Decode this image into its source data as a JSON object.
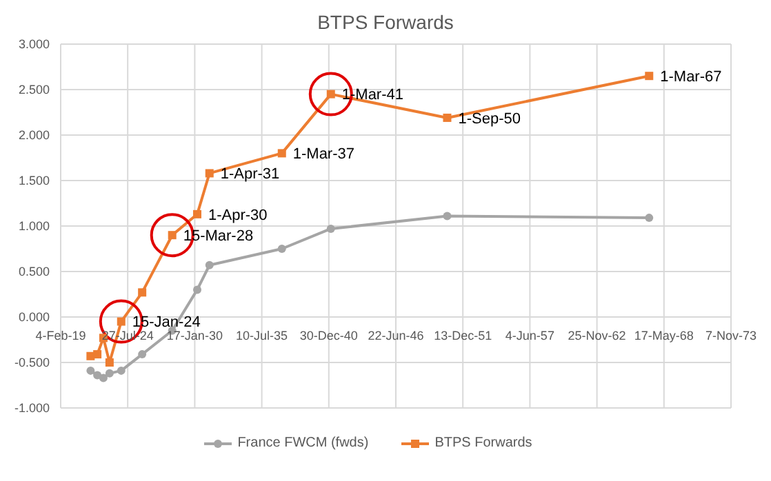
{
  "chart_data": {
    "type": "line",
    "title": "BTPS Forwards",
    "x": [
      "2021-07-15",
      "2022-02-01",
      "2022-08-01",
      "2023-02-01",
      "2024-01-15",
      "2025-10-01",
      "2028-03-15",
      "2030-04-01",
      "2031-04-01",
      "2037-03-01",
      "2041-03-01",
      "2050-09-01",
      "2067-03-01"
    ],
    "series": [
      {
        "name": "France FWCM (fwds)",
        "color": "#a5a5a5",
        "marker": "circle",
        "values": [
          -0.59,
          -0.64,
          -0.67,
          -0.62,
          -0.59,
          -0.41,
          -0.15,
          0.3,
          0.57,
          0.75,
          0.97,
          1.11,
          1.09
        ]
      },
      {
        "name": "BTPS Forwards",
        "color": "#ed7d31",
        "marker": "square",
        "values": [
          -0.43,
          -0.41,
          -0.23,
          -0.5,
          -0.05,
          0.27,
          0.9,
          1.13,
          1.58,
          1.8,
          2.45,
          2.19,
          2.65
        ]
      }
    ],
    "xlim": [
      "2019-02-04",
      "2073-11-07"
    ],
    "xticks": [
      {
        "value": "2019-02-04",
        "label": "4-Feb-19"
      },
      {
        "value": "2024-07-27",
        "label": "27-Jul-24"
      },
      {
        "value": "2030-01-17",
        "label": "17-Jan-30"
      },
      {
        "value": "2035-07-10",
        "label": "10-Jul-35"
      },
      {
        "value": "2040-12-30",
        "label": "30-Dec-40"
      },
      {
        "value": "2046-06-22",
        "label": "22-Jun-46"
      },
      {
        "value": "2051-12-13",
        "label": "13-Dec-51"
      },
      {
        "value": "2057-06-04",
        "label": "4-Jun-57"
      },
      {
        "value": "2062-11-25",
        "label": "25-Nov-62"
      },
      {
        "value": "2068-05-17",
        "label": "17-May-68"
      },
      {
        "value": "2073-11-07",
        "label": "7-Nov-73"
      }
    ],
    "ylim": [
      -1,
      3
    ],
    "yticks": [
      {
        "value": -1,
        "label": "-1.000"
      },
      {
        "value": -0.5,
        "label": "-0.500"
      },
      {
        "value": 0,
        "label": "0.000"
      },
      {
        "value": 0.5,
        "label": "0.500"
      },
      {
        "value": 1,
        "label": "1.000"
      },
      {
        "value": 1.5,
        "label": "1.500"
      },
      {
        "value": 2,
        "label": "2.000"
      },
      {
        "value": 2.5,
        "label": "2.500"
      },
      {
        "value": 3,
        "label": "3.000"
      }
    ],
    "annotations": [
      {
        "text": "15-Jan-24",
        "x": "2024-01-15",
        "y": -0.05
      },
      {
        "text": "15-Mar-28",
        "x": "2028-03-15",
        "y": 0.9
      },
      {
        "text": "1-Apr-30",
        "x": "2030-04-01",
        "y": 1.13
      },
      {
        "text": "1-Apr-31",
        "x": "2031-04-01",
        "y": 1.58
      },
      {
        "text": "1-Mar-37",
        "x": "2037-03-01",
        "y": 1.8
      },
      {
        "text": "1-Mar-41",
        "x": "2041-03-01",
        "y": 2.45
      },
      {
        "text": "1-Sep-50",
        "x": "2050-09-01",
        "y": 2.19
      },
      {
        "text": "1-Mar-67",
        "x": "2067-03-01",
        "y": 2.65
      }
    ],
    "grid": true,
    "legend": "bottom",
    "line_style": "solid"
  }
}
